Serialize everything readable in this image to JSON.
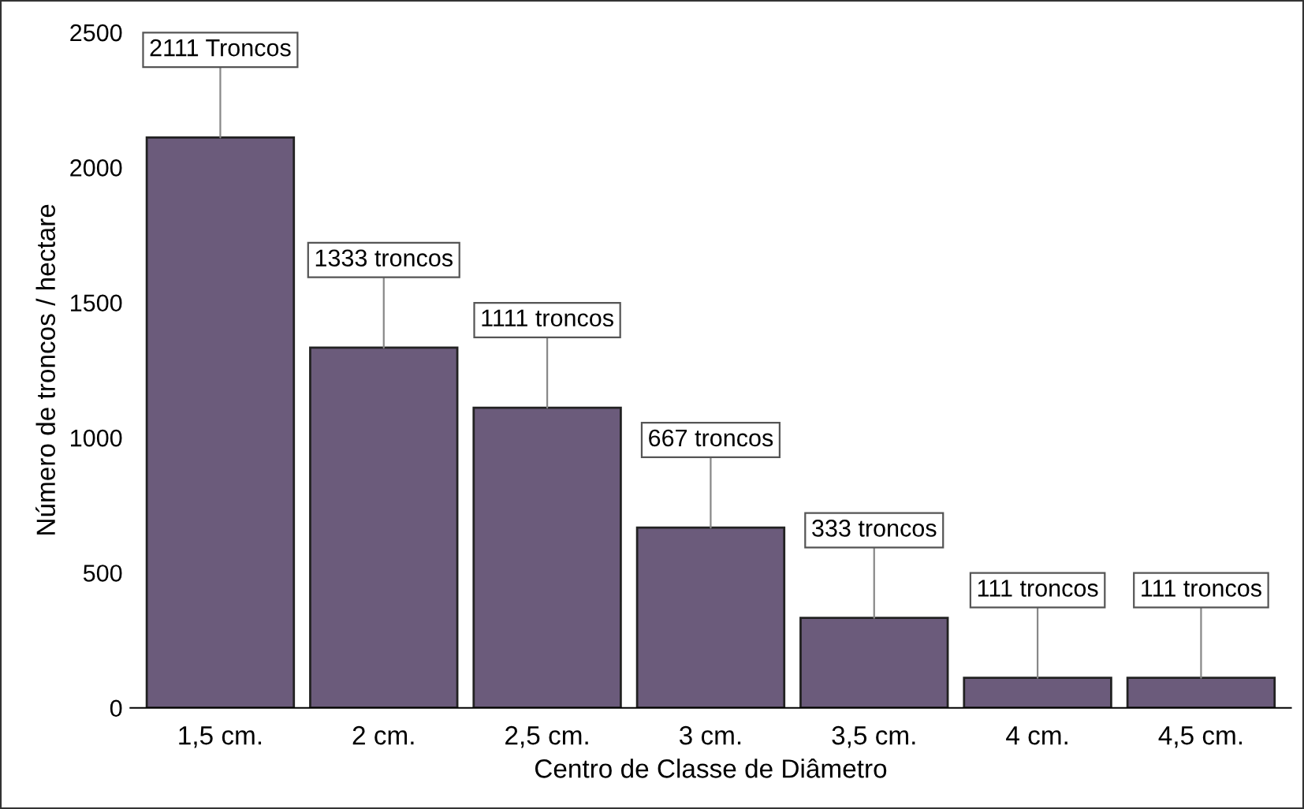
{
  "chart_data": {
    "type": "bar",
    "xlabel": "Centro de Classe de Diâmetro",
    "ylabel": "Número de troncos / hectare",
    "categories": [
      "1,5 cm.",
      "2 cm.",
      "2,5 cm.",
      "3 cm.",
      "3,5 cm.",
      "4 cm.",
      "4,5 cm."
    ],
    "values": [
      2111,
      1333,
      1111,
      667,
      333,
      111,
      111
    ],
    "value_labels": [
      "2111 Troncos",
      "1333 troncos",
      "1111 troncos",
      "667 troncos",
      "333 troncos",
      "111 troncos",
      "111 troncos"
    ],
    "color": "#6b5b7b",
    "ylim": [
      0,
      2500
    ],
    "yticks": [
      0,
      500,
      1000,
      1500,
      2000,
      2500
    ],
    "grid": false
  }
}
